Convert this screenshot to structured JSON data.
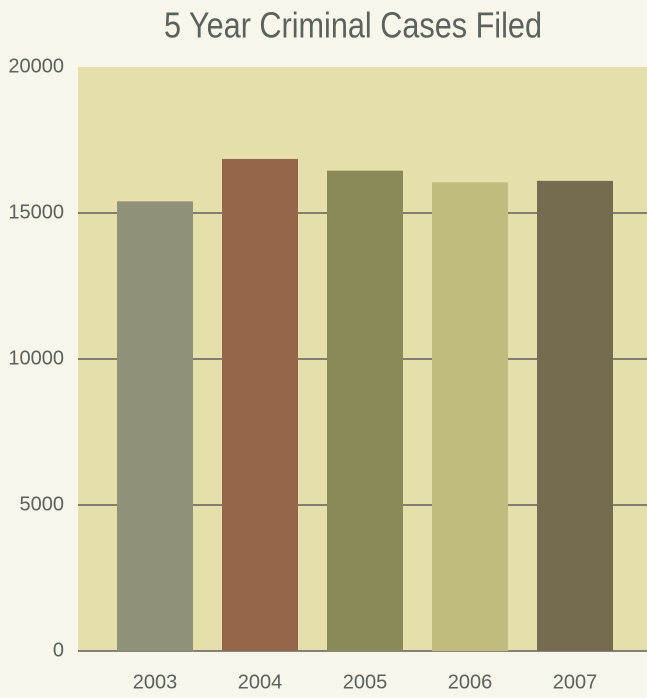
{
  "chart_data": {
    "type": "bar",
    "title": "5 Year Criminal Cases Filed",
    "categories": [
      "2003",
      "2004",
      "2005",
      "2006",
      "2007"
    ],
    "values": [
      15400,
      16850,
      16450,
      16050,
      16100
    ],
    "colors": [
      "#8f9277",
      "#96664b",
      "#898a58",
      "#c0bb7f",
      "#756b4e"
    ],
    "ylim": [
      0,
      20000
    ],
    "yticks": [
      0,
      5000,
      10000,
      15000,
      20000
    ],
    "grid": true
  }
}
